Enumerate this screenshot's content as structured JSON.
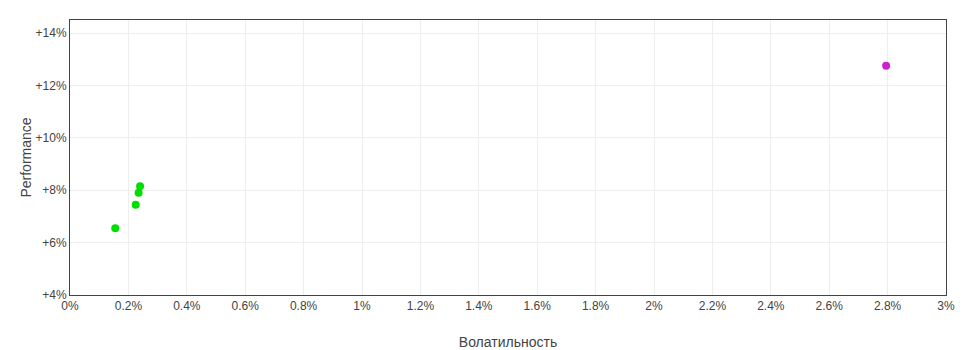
{
  "chart_data": {
    "type": "scatter",
    "xlabel": "Волатильность",
    "ylabel": "Performance",
    "series": [
      {
        "color": "#00dd00",
        "marker": "circle",
        "x": [
          0.00155,
          0.00225,
          0.00235,
          0.0024
        ],
        "values": [
          0.0655,
          0.0745,
          0.079,
          0.0815
        ]
      },
      {
        "color": "#cc22cc",
        "marker": "circle",
        "x": [
          0.02795
        ],
        "values": [
          0.1275
        ]
      }
    ],
    "xlim": [
      0.0,
      0.03
    ],
    "ylim": [
      0.04,
      0.145
    ],
    "xticks": [
      {
        "value": 0.0,
        "label": "0%"
      },
      {
        "value": 0.002,
        "label": "0.2%"
      },
      {
        "value": 0.004,
        "label": "0.4%"
      },
      {
        "value": 0.006,
        "label": "0.6%"
      },
      {
        "value": 0.008,
        "label": "0.8%"
      },
      {
        "value": 0.01,
        "label": "1%"
      },
      {
        "value": 0.012,
        "label": "1.2%"
      },
      {
        "value": 0.014,
        "label": "1.4%"
      },
      {
        "value": 0.016,
        "label": "1.6%"
      },
      {
        "value": 0.018,
        "label": "1.8%"
      },
      {
        "value": 0.02,
        "label": "2%"
      },
      {
        "value": 0.022,
        "label": "2.2%"
      },
      {
        "value": 0.024,
        "label": "2.4%"
      },
      {
        "value": 0.026,
        "label": "2.6%"
      },
      {
        "value": 0.028,
        "label": "2.8%"
      },
      {
        "value": 0.03,
        "label": "3%"
      }
    ],
    "yticks": [
      {
        "value": 0.04,
        "label": "+4%"
      },
      {
        "value": 0.06,
        "label": "+6%"
      },
      {
        "value": 0.08,
        "label": "+8%"
      },
      {
        "value": 0.1,
        "label": "+10%"
      },
      {
        "value": 0.12,
        "label": "+12%"
      },
      {
        "value": 0.14,
        "label": "+14%"
      }
    ],
    "grid": true
  }
}
